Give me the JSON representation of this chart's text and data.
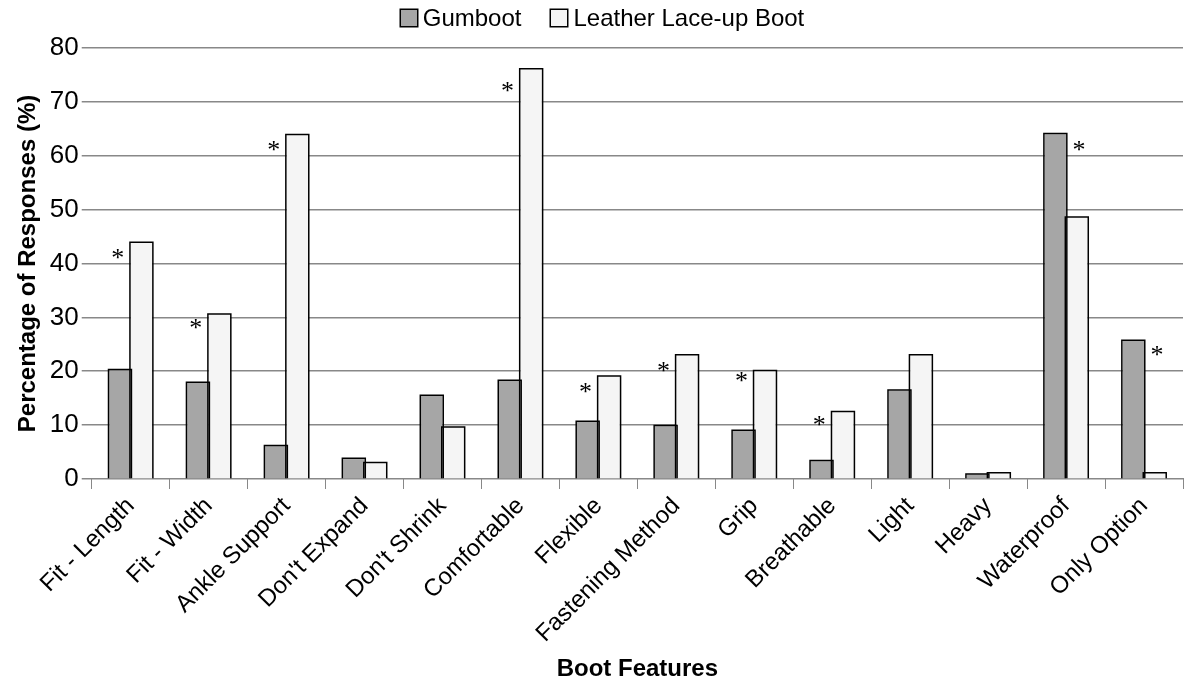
{
  "chart_data": {
    "type": "bar",
    "xlabel": "Boot Features",
    "ylabel": "Percentage of Responses (%)",
    "categories": [
      "Fit - Length",
      "Fit - Width",
      "Ankle Support",
      "Don't Expand",
      "Don't Shrink",
      "Comfortable",
      "Flexible",
      "Fastening Method",
      "Grip",
      "Breathable",
      "Light",
      "Heavy",
      "Waterproof",
      "Only Option"
    ],
    "series": [
      {
        "name": "Gumboot",
        "color": "#a6a6a6",
        "values": [
          20.2,
          17.8,
          6.1,
          3.7,
          15.4,
          18.2,
          10.6,
          9.8,
          8.9,
          3.3,
          16.4,
          0.8,
          64,
          25.6
        ]
      },
      {
        "name": "Leather Lace-up Boot",
        "color": "#f5f5f5",
        "values": [
          43.8,
          30.5,
          63.8,
          2.9,
          9.5,
          76,
          19,
          22.9,
          20,
          12.4,
          22.9,
          1,
          48.5,
          1
        ]
      }
    ],
    "ylim": [
      0,
      80
    ],
    "yticks": [
      0,
      10,
      20,
      30,
      40,
      50,
      60,
      70,
      80
    ],
    "grid": "y",
    "legend": "top",
    "annotations": [
      {
        "text": "*",
        "x": "Fit - Length",
        "y": 42
      },
      {
        "text": "*",
        "x": "Fit - Width",
        "y": 29
      },
      {
        "text": "*",
        "x": "Ankle Support",
        "y": 62
      },
      {
        "text": "*",
        "x": "Comfortable",
        "y": 73
      },
      {
        "text": "*",
        "x": "Flexible",
        "y": 17
      },
      {
        "text": "*",
        "x": "Fastening Method",
        "y": 21
      },
      {
        "text": "*",
        "x": "Grip",
        "y": 19
      },
      {
        "text": "*",
        "x": "Breathable",
        "y": 11
      },
      {
        "text": "*",
        "x": "Waterproof",
        "y": 62
      },
      {
        "text": "*",
        "x": "Only Option",
        "y": 24
      }
    ]
  }
}
